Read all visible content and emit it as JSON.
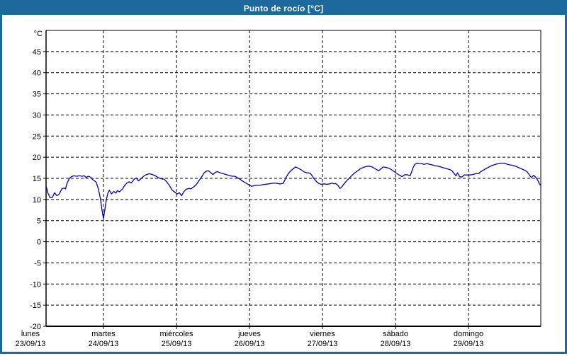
{
  "window": {
    "title": "Punto de rocío [°C]"
  },
  "colors": {
    "frame_border": "#1d699c",
    "titlebar_bg": "#1d699c",
    "titlebar_text": "#ffffff",
    "plot_bg": "#fefffe",
    "axis": "#000000",
    "grid": "#000000",
    "tick_text": "#000000",
    "series_line": "#0000b0"
  },
  "chart_data": {
    "type": "line",
    "title": "Punto de rocío [°C]",
    "ylabel": "°C",
    "y_unit_label": "°C",
    "ylim": [
      -20,
      50
    ],
    "y_ticks": [
      45,
      40,
      35,
      30,
      25,
      20,
      15,
      10,
      5,
      0,
      -5,
      -10,
      -15,
      -20
    ],
    "grid": true,
    "grid_style": "dashed",
    "x_axis_note": "t in days since lunes 23/09/13 00:00, visible window starts at t=0.214",
    "xlim_days": [
      0.214,
      7.0
    ],
    "x_categories": [
      {
        "day": "lunes",
        "date": "23/09/13"
      },
      {
        "day": "martes",
        "date": "24/09/13"
      },
      {
        "day": "miércoles",
        "date": "25/09/13"
      },
      {
        "day": "jueves",
        "date": "26/09/13"
      },
      {
        "day": "viernes",
        "date": "27/09/13"
      },
      {
        "day": "sábado",
        "date": "28/09/13"
      },
      {
        "day": "domingo",
        "date": "29/09/13"
      }
    ],
    "series": [
      {
        "name": "Punto de rocío",
        "color": "#0000b0",
        "points": [
          [
            0.214,
            13.2
          ],
          [
            0.24,
            11.5
          ],
          [
            0.27,
            10.4
          ],
          [
            0.3,
            10.5
          ],
          [
            0.33,
            11.6
          ],
          [
            0.36,
            10.9
          ],
          [
            0.39,
            11.2
          ],
          [
            0.43,
            12.5
          ],
          [
            0.46,
            12.7
          ],
          [
            0.48,
            12.5
          ],
          [
            0.5,
            13.8
          ],
          [
            0.53,
            14.9
          ],
          [
            0.56,
            15.4
          ],
          [
            0.59,
            15.6
          ],
          [
            0.63,
            15.5
          ],
          [
            0.67,
            15.6
          ],
          [
            0.71,
            15.5
          ],
          [
            0.74,
            15.6
          ],
          [
            0.76,
            15.2
          ],
          [
            0.79,
            15.5
          ],
          [
            0.82,
            15.3
          ],
          [
            0.84,
            14.9
          ],
          [
            0.87,
            14.5
          ],
          [
            0.9,
            14.1
          ],
          [
            0.93,
            12.5
          ],
          [
            0.96,
            10.0
          ],
          [
            0.98,
            7.5
          ],
          [
            1.0,
            5.5
          ],
          [
            1.02,
            7.8
          ],
          [
            1.04,
            10.0
          ],
          [
            1.06,
            11.5
          ],
          [
            1.08,
            12.2
          ],
          [
            1.11,
            11.3
          ],
          [
            1.14,
            11.9
          ],
          [
            1.17,
            11.5
          ],
          [
            1.19,
            12.1
          ],
          [
            1.22,
            11.8
          ],
          [
            1.26,
            12.5
          ],
          [
            1.29,
            13.3
          ],
          [
            1.32,
            13.9
          ],
          [
            1.35,
            14.2
          ],
          [
            1.38,
            13.9
          ],
          [
            1.42,
            14.8
          ],
          [
            1.45,
            15.1
          ],
          [
            1.48,
            14.4
          ],
          [
            1.51,
            14.9
          ],
          [
            1.55,
            15.5
          ],
          [
            1.59,
            15.9
          ],
          [
            1.63,
            16.1
          ],
          [
            1.67,
            15.9
          ],
          [
            1.71,
            15.6
          ],
          [
            1.75,
            15.2
          ],
          [
            1.79,
            14.9
          ],
          [
            1.83,
            14.8
          ],
          [
            1.86,
            14.3
          ],
          [
            1.9,
            13.4
          ],
          [
            1.94,
            12.2
          ],
          [
            1.98,
            11.7
          ],
          [
            2.01,
            11.3
          ],
          [
            2.04,
            11.6
          ],
          [
            2.07,
            10.9
          ],
          [
            2.1,
            11.8
          ],
          [
            2.13,
            12.4
          ],
          [
            2.17,
            12.6
          ],
          [
            2.2,
            12.5
          ],
          [
            2.23,
            12.9
          ],
          [
            2.27,
            13.5
          ],
          [
            2.31,
            14.5
          ],
          [
            2.35,
            15.5
          ],
          [
            2.38,
            16.3
          ],
          [
            2.41,
            16.7
          ],
          [
            2.44,
            16.8
          ],
          [
            2.47,
            16.3
          ],
          [
            2.5,
            15.9
          ],
          [
            2.53,
            16.4
          ],
          [
            2.56,
            16.6
          ],
          [
            2.6,
            16.3
          ],
          [
            2.64,
            16.1
          ],
          [
            2.68,
            15.9
          ],
          [
            2.72,
            15.7
          ],
          [
            2.76,
            15.5
          ],
          [
            2.8,
            15.5
          ],
          [
            2.83,
            15.2
          ],
          [
            2.87,
            14.8
          ],
          [
            2.91,
            14.3
          ],
          [
            2.95,
            13.9
          ],
          [
            2.99,
            13.5
          ],
          [
            3.03,
            13.1
          ],
          [
            3.07,
            13.3
          ],
          [
            3.11,
            13.4
          ],
          [
            3.15,
            13.4
          ],
          [
            3.18,
            13.5
          ],
          [
            3.22,
            13.6
          ],
          [
            3.26,
            13.7
          ],
          [
            3.3,
            13.8
          ],
          [
            3.34,
            13.9
          ],
          [
            3.38,
            13.8
          ],
          [
            3.42,
            13.7
          ],
          [
            3.46,
            13.8
          ],
          [
            3.49,
            14.8
          ],
          [
            3.52,
            15.8
          ],
          [
            3.55,
            16.5
          ],
          [
            3.58,
            17.0
          ],
          [
            3.61,
            17.4
          ],
          [
            3.63,
            17.7
          ],
          [
            3.67,
            17.4
          ],
          [
            3.71,
            17.0
          ],
          [
            3.75,
            16.5
          ],
          [
            3.79,
            16.3
          ],
          [
            3.83,
            16.2
          ],
          [
            3.85,
            15.8
          ],
          [
            3.88,
            15.0
          ],
          [
            3.92,
            14.2
          ],
          [
            3.95,
            13.8
          ],
          [
            3.98,
            13.6
          ],
          [
            4.02,
            13.7
          ],
          [
            4.06,
            13.6
          ],
          [
            4.1,
            13.7
          ],
          [
            4.13,
            13.9
          ],
          [
            4.16,
            13.7
          ],
          [
            4.18,
            13.8
          ],
          [
            4.21,
            13.4
          ],
          [
            4.24,
            12.6
          ],
          [
            4.27,
            13.1
          ],
          [
            4.3,
            13.8
          ],
          [
            4.33,
            14.4
          ],
          [
            4.37,
            15.1
          ],
          [
            4.41,
            15.8
          ],
          [
            4.45,
            16.4
          ],
          [
            4.49,
            16.9
          ],
          [
            4.52,
            17.3
          ],
          [
            4.56,
            17.6
          ],
          [
            4.6,
            17.8
          ],
          [
            4.64,
            17.9
          ],
          [
            4.68,
            17.7
          ],
          [
            4.71,
            17.4
          ],
          [
            4.74,
            17.1
          ],
          [
            4.77,
            16.8
          ],
          [
            4.81,
            17.4
          ],
          [
            4.83,
            17.7
          ],
          [
            4.87,
            17.6
          ],
          [
            4.91,
            17.4
          ],
          [
            4.95,
            17.0
          ],
          [
            4.99,
            16.5
          ],
          [
            5.03,
            16.0
          ],
          [
            5.06,
            15.7
          ],
          [
            5.09,
            15.4
          ],
          [
            5.13,
            15.9
          ],
          [
            5.17,
            15.8
          ],
          [
            5.2,
            15.6
          ],
          [
            5.22,
            16.5
          ],
          [
            5.24,
            17.5
          ],
          [
            5.26,
            18.2
          ],
          [
            5.29,
            18.6
          ],
          [
            5.32,
            18.5
          ],
          [
            5.36,
            18.5
          ],
          [
            5.39,
            18.3
          ],
          [
            5.43,
            18.5
          ],
          [
            5.47,
            18.3
          ],
          [
            5.5,
            18.2
          ],
          [
            5.54,
            18.0
          ],
          [
            5.58,
            17.9
          ],
          [
            5.62,
            17.7
          ],
          [
            5.66,
            17.5
          ],
          [
            5.7,
            17.3
          ],
          [
            5.74,
            17.1
          ],
          [
            5.77,
            16.9
          ],
          [
            5.8,
            16.2
          ],
          [
            5.83,
            15.6
          ],
          [
            5.85,
            16.3
          ],
          [
            5.88,
            15.4
          ],
          [
            5.91,
            15.3
          ],
          [
            5.94,
            15.8
          ],
          [
            5.98,
            15.8
          ],
          [
            6.02,
            15.8
          ],
          [
            6.06,
            15.9
          ],
          [
            6.1,
            16.1
          ],
          [
            6.14,
            16.1
          ],
          [
            6.17,
            16.6
          ],
          [
            6.21,
            17.0
          ],
          [
            6.25,
            17.4
          ],
          [
            6.29,
            17.8
          ],
          [
            6.33,
            18.1
          ],
          [
            6.37,
            18.3
          ],
          [
            6.41,
            18.5
          ],
          [
            6.45,
            18.6
          ],
          [
            6.49,
            18.6
          ],
          [
            6.52,
            18.4
          ],
          [
            6.56,
            18.2
          ],
          [
            6.6,
            18.1
          ],
          [
            6.64,
            17.9
          ],
          [
            6.68,
            17.6
          ],
          [
            6.72,
            17.3
          ],
          [
            6.76,
            17.0
          ],
          [
            6.8,
            16.6
          ],
          [
            6.83,
            15.9
          ],
          [
            6.86,
            15.2
          ],
          [
            6.89,
            15.7
          ],
          [
            6.92,
            15.3
          ],
          [
            6.95,
            14.5
          ],
          [
            6.97,
            13.8
          ],
          [
            6.99,
            13.3
          ]
        ]
      }
    ]
  }
}
